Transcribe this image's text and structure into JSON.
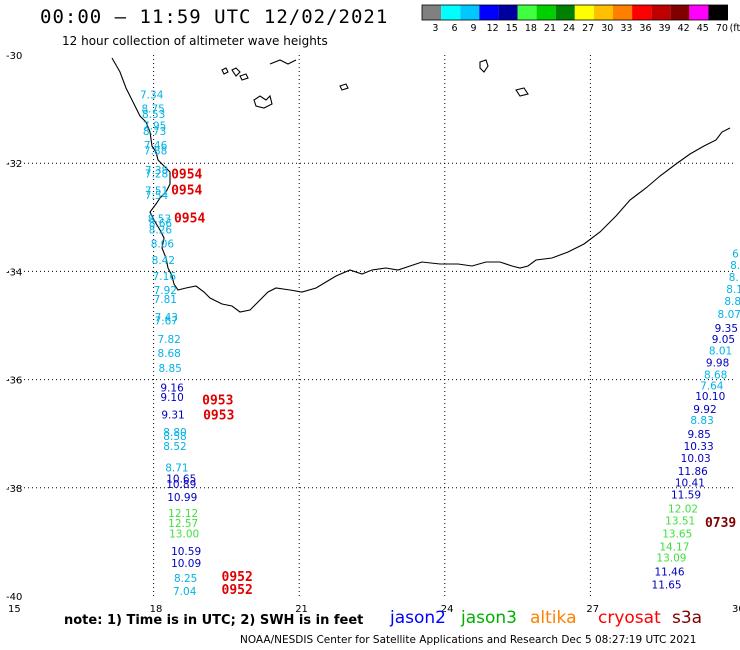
{
  "header": {
    "title": "00:00 – 11:59 UTC 12/02/2021",
    "subtitle": "12 hour collection of altimeter wave heights"
  },
  "color_scale": {
    "unit": "(ft)",
    "labels": [
      "3",
      "6",
      "9",
      "12",
      "15",
      "18",
      "21",
      "24",
      "27",
      "30",
      "33",
      "36",
      "39",
      "42",
      "45",
      "70"
    ],
    "colors": [
      "#808080",
      "#00ffff",
      "#00c8ff",
      "#0000ff",
      "#0000a0",
      "#40ff40",
      "#00d000",
      "#008000",
      "#ffff00",
      "#ffc000",
      "#ff8000",
      "#ff0000",
      "#c00000",
      "#800000",
      "#ff00ff",
      "#000000"
    ]
  },
  "axes": {
    "lon_ticks": [
      "15",
      "18",
      "21",
      "24",
      "27",
      "30"
    ],
    "lat_ticks": [
      "-30",
      "-32",
      "-34",
      "-36",
      "-38",
      "-40"
    ]
  },
  "satellites": [
    {
      "name": "jason2",
      "color": "#0000ff"
    },
    {
      "name": "jason3",
      "color": "#00b000"
    },
    {
      "name": "altika",
      "color": "#ff8000"
    },
    {
      "name": "cryosat",
      "color": "#ff0000"
    },
    {
      "name": "s3a",
      "color": "#800000"
    }
  ],
  "footer": {
    "note": "note: 1) Time is in UTC; 2) SWH is in feet",
    "credit": "NOAA/NESDIS Center for Satellite Applications and Research    Dec  5 08:27:19 UTC 2021"
  },
  "tracks": {
    "west": [
      {
        "v": "7.34",
        "lon": 17.72,
        "lat": -30.8,
        "c": "#00b4e6"
      },
      {
        "v": "8.75",
        "lon": 17.75,
        "lat": -31.06,
        "c": "#00b4e6"
      },
      {
        "v": "8.53",
        "lon": 17.76,
        "lat": -31.16,
        "c": "#00b4e6"
      },
      {
        "v": "7.95",
        "lon": 17.78,
        "lat": -31.38,
        "c": "#00b4e6"
      },
      {
        "v": "8.73",
        "lon": 17.78,
        "lat": -31.48,
        "c": "#00b4e6"
      },
      {
        "v": "7.46",
        "lon": 17.8,
        "lat": -31.74,
        "c": "#00b4e6"
      },
      {
        "v": "7.88",
        "lon": 17.8,
        "lat": -31.84,
        "c": "#00b4e6"
      },
      {
        "v": "7.38",
        "lon": 17.82,
        "lat": -32.2,
        "c": "#00b4e6"
      },
      {
        "v": "7.28",
        "lon": 17.82,
        "lat": -32.26,
        "c": "#00b4e6"
      },
      {
        "v": "7.51",
        "lon": 17.82,
        "lat": -32.58,
        "c": "#00b4e6"
      },
      {
        "v": "7.54",
        "lon": 17.82,
        "lat": -32.66,
        "c": "#00b4e6"
      },
      {
        "v": "8.53",
        "lon": 17.88,
        "lat": -33.1,
        "c": "#00b4e6"
      },
      {
        "v": "8.66",
        "lon": 17.9,
        "lat": -33.18,
        "c": "#00b4e6"
      },
      {
        "v": "8.26",
        "lon": 17.9,
        "lat": -33.3,
        "c": "#00b4e6"
      },
      {
        "v": "8.06",
        "lon": 17.94,
        "lat": -33.56,
        "c": "#00b4e6"
      },
      {
        "v": "8.42",
        "lon": 17.96,
        "lat": -33.86,
        "c": "#00b4e6"
      },
      {
        "v": "7.16",
        "lon": 17.98,
        "lat": -34.16,
        "c": "#00b4e6"
      },
      {
        "v": "7.92",
        "lon": 18.0,
        "lat": -34.42,
        "c": "#00b4e6"
      },
      {
        "v": "7.81",
        "lon": 18.0,
        "lat": -34.58,
        "c": "#00b4e6"
      },
      {
        "v": "7.43",
        "lon": 18.02,
        "lat": -34.92,
        "c": "#00b4e6"
      },
      {
        "v": "7.67",
        "lon": 18.02,
        "lat": -34.98,
        "c": "#00b4e6"
      },
      {
        "v": "7.82",
        "lon": 18.08,
        "lat": -35.32,
        "c": "#00b4e6"
      },
      {
        "v": "8.68",
        "lon": 18.08,
        "lat": -35.58,
        "c": "#00b4e6"
      },
      {
        "v": "8.85",
        "lon": 18.1,
        "lat": -35.86,
        "c": "#00b4e6"
      },
      {
        "v": "9.16",
        "lon": 18.14,
        "lat": -36.22,
        "c": "#0000c0"
      },
      {
        "v": "9.10",
        "lon": 18.14,
        "lat": -36.4,
        "c": "#0000c0"
      },
      {
        "v": "9.31",
        "lon": 18.16,
        "lat": -36.72,
        "c": "#0000c0"
      },
      {
        "v": "8.80",
        "lon": 18.2,
        "lat": -37.04,
        "c": "#00b4e6"
      },
      {
        "v": "8.58",
        "lon": 18.2,
        "lat": -37.12,
        "c": "#00b4e6"
      },
      {
        "v": "8.52",
        "lon": 18.2,
        "lat": -37.3,
        "c": "#00b4e6"
      },
      {
        "v": "8.71",
        "lon": 18.24,
        "lat": -37.7,
        "c": "#00b4e6"
      },
      {
        "v": "10.65",
        "lon": 18.26,
        "lat": -37.9,
        "c": "#0000c0"
      },
      {
        "v": "10.89",
        "lon": 18.26,
        "lat": -38.0,
        "c": "#0000c0"
      },
      {
        "v": "10.99",
        "lon": 18.28,
        "lat": -38.24,
        "c": "#0000c0"
      },
      {
        "v": "12.12",
        "lon": 18.3,
        "lat": -38.54,
        "c": "#40e040"
      },
      {
        "v": "12.57",
        "lon": 18.3,
        "lat": -38.72,
        "c": "#40e040"
      },
      {
        "v": "13.00",
        "lon": 18.32,
        "lat": -38.92,
        "c": "#40e040"
      },
      {
        "v": "10.59",
        "lon": 18.36,
        "lat": -39.24,
        "c": "#0000c0"
      },
      {
        "v": "10.09",
        "lon": 18.36,
        "lat": -39.46,
        "c": "#0000c0"
      },
      {
        "v": "8.25",
        "lon": 18.42,
        "lat": -39.74,
        "c": "#00b4e6"
      },
      {
        "v": "7.04",
        "lon": 18.4,
        "lat": -39.98,
        "c": "#00b4e6"
      }
    ],
    "east": [
      {
        "v": "6",
        "lon": 29.92,
        "lat": -33.74,
        "c": "#00b4e6"
      },
      {
        "v": "8.",
        "lon": 29.88,
        "lat": -33.96,
        "c": "#00b4e6"
      },
      {
        "v": "8.",
        "lon": 29.85,
        "lat": -34.18,
        "c": "#00b4e6"
      },
      {
        "v": "8.1",
        "lon": 29.8,
        "lat": -34.4,
        "c": "#00b4e6"
      },
      {
        "v": "8.8",
        "lon": 29.76,
        "lat": -34.62,
        "c": "#00b4e6"
      },
      {
        "v": "8.07",
        "lon": 29.62,
        "lat": -34.86,
        "c": "#00b4e6"
      },
      {
        "v": "9.35",
        "lon": 29.56,
        "lat": -35.12,
        "c": "#0000c0"
      },
      {
        "v": "9.05",
        "lon": 29.5,
        "lat": -35.32,
        "c": "#0000c0"
      },
      {
        "v": "8.01",
        "lon": 29.44,
        "lat": -35.54,
        "c": "#00b4e6"
      },
      {
        "v": "9.98",
        "lon": 29.38,
        "lat": -35.76,
        "c": "#0000c0"
      },
      {
        "v": "8.68",
        "lon": 29.34,
        "lat": -35.98,
        "c": "#00b4e6"
      },
      {
        "v": "7.64",
        "lon": 29.26,
        "lat": -36.18,
        "c": "#00b4e6"
      },
      {
        "v": "10.10",
        "lon": 29.16,
        "lat": -36.38,
        "c": "#0000c0"
      },
      {
        "v": "9.92",
        "lon": 29.12,
        "lat": -36.62,
        "c": "#0000c0"
      },
      {
        "v": "8.83",
        "lon": 29.06,
        "lat": -36.82,
        "c": "#00b4e6"
      },
      {
        "v": "9.85",
        "lon": 29.0,
        "lat": -37.08,
        "c": "#0000c0"
      },
      {
        "v": "10.33",
        "lon": 28.92,
        "lat": -37.3,
        "c": "#0000c0"
      },
      {
        "v": "10.03",
        "lon": 28.86,
        "lat": -37.52,
        "c": "#0000c0"
      },
      {
        "v": "11.86",
        "lon": 28.8,
        "lat": -37.76,
        "c": "#0000c0"
      },
      {
        "v": "10.41",
        "lon": 28.74,
        "lat": -37.98,
        "c": "#0000c0"
      },
      {
        "v": "11.59",
        "lon": 28.66,
        "lat": -38.2,
        "c": "#0000c0"
      },
      {
        "v": "12.02",
        "lon": 28.6,
        "lat": -38.46,
        "c": "#40e040"
      },
      {
        "v": "13.51",
        "lon": 28.54,
        "lat": -38.68,
        "c": "#40e040"
      },
      {
        "v": "13.65",
        "lon": 28.48,
        "lat": -38.92,
        "c": "#40e040"
      },
      {
        "v": "14.17",
        "lon": 28.42,
        "lat": -39.16,
        "c": "#40e040"
      },
      {
        "v": "13.09",
        "lon": 28.36,
        "lat": -39.36,
        "c": "#40e040"
      },
      {
        "v": "11.46",
        "lon": 28.32,
        "lat": -39.62,
        "c": "#0000c0"
      },
      {
        "v": "11.65",
        "lon": 28.26,
        "lat": -39.86,
        "c": "#0000c0"
      }
    ]
  },
  "times": [
    {
      "t": "0954",
      "lon": 18.36,
      "lat": -32.28,
      "c": "#e00000"
    },
    {
      "t": "0954",
      "lon": 18.36,
      "lat": -32.58,
      "c": "#e00000"
    },
    {
      "t": "0954",
      "lon": 18.42,
      "lat": -33.1,
      "c": "#e00000"
    },
    {
      "t": "0953",
      "lon": 19.0,
      "lat": -36.46,
      "c": "#e00000"
    },
    {
      "t": "0953",
      "lon": 19.02,
      "lat": -36.74,
      "c": "#e00000"
    },
    {
      "t": "0952",
      "lon": 19.4,
      "lat": -39.72,
      "c": "#e00000"
    },
    {
      "t": "0952",
      "lon": 19.4,
      "lat": -39.96,
      "c": "#e00000"
    },
    {
      "t": "0739",
      "lon": 29.36,
      "lat": -38.72,
      "c": "#800000"
    }
  ]
}
